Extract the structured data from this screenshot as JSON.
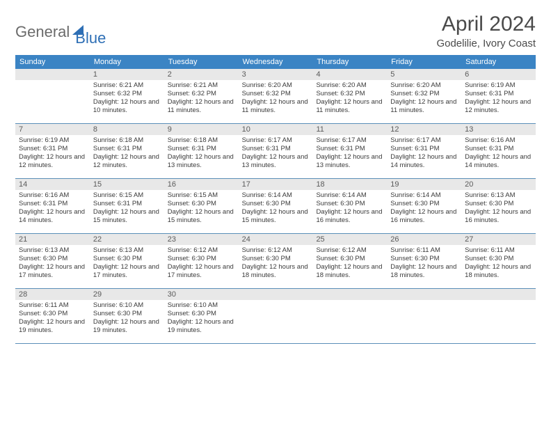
{
  "logo": {
    "general": "General",
    "blue": "Blue"
  },
  "title": "April 2024",
  "location": "Godelilie, Ivory Coast",
  "weekdays": [
    "Sunday",
    "Monday",
    "Tuesday",
    "Wednesday",
    "Thursday",
    "Friday",
    "Saturday"
  ],
  "colors": {
    "header_bg": "#3b84c4",
    "daynum_bg": "#e8e8e8",
    "border": "#5a8fb8",
    "logo_gray": "#6b6b6b",
    "logo_blue": "#2e6fb5",
    "text": "#333333"
  },
  "weeks": [
    [
      {
        "num": "",
        "sunrise": "",
        "sunset": "",
        "daylight": ""
      },
      {
        "num": "1",
        "sunrise": "Sunrise: 6:21 AM",
        "sunset": "Sunset: 6:32 PM",
        "daylight": "Daylight: 12 hours and 10 minutes."
      },
      {
        "num": "2",
        "sunrise": "Sunrise: 6:21 AM",
        "sunset": "Sunset: 6:32 PM",
        "daylight": "Daylight: 12 hours and 11 minutes."
      },
      {
        "num": "3",
        "sunrise": "Sunrise: 6:20 AM",
        "sunset": "Sunset: 6:32 PM",
        "daylight": "Daylight: 12 hours and 11 minutes."
      },
      {
        "num": "4",
        "sunrise": "Sunrise: 6:20 AM",
        "sunset": "Sunset: 6:32 PM",
        "daylight": "Daylight: 12 hours and 11 minutes."
      },
      {
        "num": "5",
        "sunrise": "Sunrise: 6:20 AM",
        "sunset": "Sunset: 6:32 PM",
        "daylight": "Daylight: 12 hours and 11 minutes."
      },
      {
        "num": "6",
        "sunrise": "Sunrise: 6:19 AM",
        "sunset": "Sunset: 6:31 PM",
        "daylight": "Daylight: 12 hours and 12 minutes."
      }
    ],
    [
      {
        "num": "7",
        "sunrise": "Sunrise: 6:19 AM",
        "sunset": "Sunset: 6:31 PM",
        "daylight": "Daylight: 12 hours and 12 minutes."
      },
      {
        "num": "8",
        "sunrise": "Sunrise: 6:18 AM",
        "sunset": "Sunset: 6:31 PM",
        "daylight": "Daylight: 12 hours and 12 minutes."
      },
      {
        "num": "9",
        "sunrise": "Sunrise: 6:18 AM",
        "sunset": "Sunset: 6:31 PM",
        "daylight": "Daylight: 12 hours and 13 minutes."
      },
      {
        "num": "10",
        "sunrise": "Sunrise: 6:17 AM",
        "sunset": "Sunset: 6:31 PM",
        "daylight": "Daylight: 12 hours and 13 minutes."
      },
      {
        "num": "11",
        "sunrise": "Sunrise: 6:17 AM",
        "sunset": "Sunset: 6:31 PM",
        "daylight": "Daylight: 12 hours and 13 minutes."
      },
      {
        "num": "12",
        "sunrise": "Sunrise: 6:17 AM",
        "sunset": "Sunset: 6:31 PM",
        "daylight": "Daylight: 12 hours and 14 minutes."
      },
      {
        "num": "13",
        "sunrise": "Sunrise: 6:16 AM",
        "sunset": "Sunset: 6:31 PM",
        "daylight": "Daylight: 12 hours and 14 minutes."
      }
    ],
    [
      {
        "num": "14",
        "sunrise": "Sunrise: 6:16 AM",
        "sunset": "Sunset: 6:31 PM",
        "daylight": "Daylight: 12 hours and 14 minutes."
      },
      {
        "num": "15",
        "sunrise": "Sunrise: 6:15 AM",
        "sunset": "Sunset: 6:31 PM",
        "daylight": "Daylight: 12 hours and 15 minutes."
      },
      {
        "num": "16",
        "sunrise": "Sunrise: 6:15 AM",
        "sunset": "Sunset: 6:30 PM",
        "daylight": "Daylight: 12 hours and 15 minutes."
      },
      {
        "num": "17",
        "sunrise": "Sunrise: 6:14 AM",
        "sunset": "Sunset: 6:30 PM",
        "daylight": "Daylight: 12 hours and 15 minutes."
      },
      {
        "num": "18",
        "sunrise": "Sunrise: 6:14 AM",
        "sunset": "Sunset: 6:30 PM",
        "daylight": "Daylight: 12 hours and 16 minutes."
      },
      {
        "num": "19",
        "sunrise": "Sunrise: 6:14 AM",
        "sunset": "Sunset: 6:30 PM",
        "daylight": "Daylight: 12 hours and 16 minutes."
      },
      {
        "num": "20",
        "sunrise": "Sunrise: 6:13 AM",
        "sunset": "Sunset: 6:30 PM",
        "daylight": "Daylight: 12 hours and 16 minutes."
      }
    ],
    [
      {
        "num": "21",
        "sunrise": "Sunrise: 6:13 AM",
        "sunset": "Sunset: 6:30 PM",
        "daylight": "Daylight: 12 hours and 17 minutes."
      },
      {
        "num": "22",
        "sunrise": "Sunrise: 6:13 AM",
        "sunset": "Sunset: 6:30 PM",
        "daylight": "Daylight: 12 hours and 17 minutes."
      },
      {
        "num": "23",
        "sunrise": "Sunrise: 6:12 AM",
        "sunset": "Sunset: 6:30 PM",
        "daylight": "Daylight: 12 hours and 17 minutes."
      },
      {
        "num": "24",
        "sunrise": "Sunrise: 6:12 AM",
        "sunset": "Sunset: 6:30 PM",
        "daylight": "Daylight: 12 hours and 18 minutes."
      },
      {
        "num": "25",
        "sunrise": "Sunrise: 6:12 AM",
        "sunset": "Sunset: 6:30 PM",
        "daylight": "Daylight: 12 hours and 18 minutes."
      },
      {
        "num": "26",
        "sunrise": "Sunrise: 6:11 AM",
        "sunset": "Sunset: 6:30 PM",
        "daylight": "Daylight: 12 hours and 18 minutes."
      },
      {
        "num": "27",
        "sunrise": "Sunrise: 6:11 AM",
        "sunset": "Sunset: 6:30 PM",
        "daylight": "Daylight: 12 hours and 18 minutes."
      }
    ],
    [
      {
        "num": "28",
        "sunrise": "Sunrise: 6:11 AM",
        "sunset": "Sunset: 6:30 PM",
        "daylight": "Daylight: 12 hours and 19 minutes."
      },
      {
        "num": "29",
        "sunrise": "Sunrise: 6:10 AM",
        "sunset": "Sunset: 6:30 PM",
        "daylight": "Daylight: 12 hours and 19 minutes."
      },
      {
        "num": "30",
        "sunrise": "Sunrise: 6:10 AM",
        "sunset": "Sunset: 6:30 PM",
        "daylight": "Daylight: 12 hours and 19 minutes."
      },
      {
        "num": "",
        "sunrise": "",
        "sunset": "",
        "daylight": ""
      },
      {
        "num": "",
        "sunrise": "",
        "sunset": "",
        "daylight": ""
      },
      {
        "num": "",
        "sunrise": "",
        "sunset": "",
        "daylight": ""
      },
      {
        "num": "",
        "sunrise": "",
        "sunset": "",
        "daylight": ""
      }
    ]
  ]
}
